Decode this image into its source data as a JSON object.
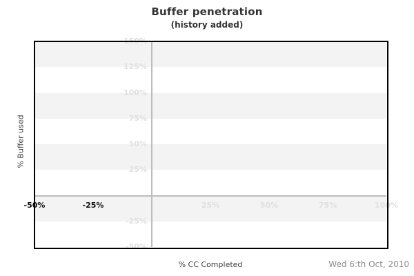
{
  "header": {
    "title": "Buffer penetration",
    "subtitle": "(history added)"
  },
  "axes": {
    "y_title": "% Buffer used",
    "x_title": "% CC Completed"
  },
  "footer": {
    "date": "Wed 6:th Oct, 2010"
  },
  "colors": {
    "background": "#ffffff",
    "band": "#f3f3f3",
    "zero_line": "#bcbcbc",
    "muted_tick": "#e0e0e0",
    "emphasis_tick": "#111111",
    "frame": "#000000",
    "title": "#333333",
    "axis_title": "#404040",
    "date": "#8c8c8c"
  },
  "chart_data": {
    "type": "line",
    "title": "Buffer penetration",
    "subtitle": "(history added)",
    "xlabel": "% CC Completed",
    "ylabel": "% Buffer used",
    "xlim": [
      -50,
      100
    ],
    "ylim": [
      -50,
      150
    ],
    "grid": "alternating-horizontal-bands",
    "legend": "none",
    "series": [],
    "y_ticks": [
      {
        "value": 150,
        "label": "150%"
      },
      {
        "value": 125,
        "label": "125%"
      },
      {
        "value": 100,
        "label": "100%"
      },
      {
        "value": 75,
        "label": "75%"
      },
      {
        "value": 50,
        "label": "50%"
      },
      {
        "value": 25,
        "label": "25%"
      },
      {
        "value": -25,
        "label": "-25%"
      },
      {
        "value": -50,
        "label": "-50%"
      }
    ],
    "x_ticks": [
      {
        "value": -50,
        "label": "-50%",
        "emphasis": true
      },
      {
        "value": -25,
        "label": "-25%",
        "emphasis": true
      },
      {
        "value": 25,
        "label": "25%",
        "emphasis": false
      },
      {
        "value": 50,
        "label": "50%",
        "emphasis": false
      },
      {
        "value": 75,
        "label": "75%",
        "emphasis": false
      },
      {
        "value": 100,
        "label": "100%",
        "emphasis": false
      }
    ],
    "bands": [
      [
        150,
        125
      ],
      [
        100,
        75
      ],
      [
        50,
        25
      ],
      [
        0,
        -25
      ]
    ],
    "zero_lines": {
      "x": 0,
      "y": 0
    }
  }
}
